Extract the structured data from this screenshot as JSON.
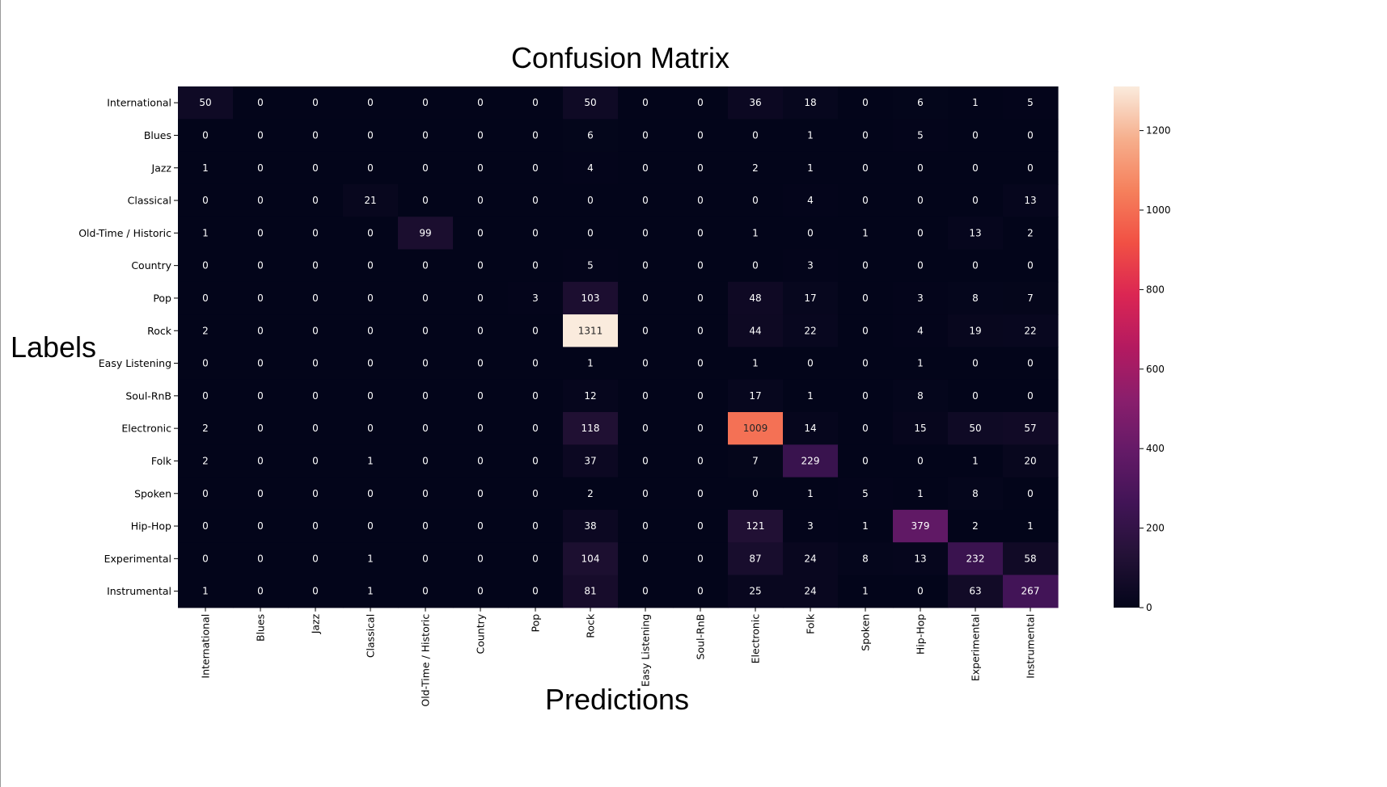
{
  "chart_data": {
    "type": "heatmap",
    "title": "Confusion Matrix",
    "xlabel": "Predictions",
    "ylabel": "Labels",
    "x_categories": [
      "International",
      "Blues",
      "Jazz",
      "Classical",
      "Old-Time / Historic",
      "Country",
      "Pop",
      "Rock",
      "Easy Listening",
      "Soul-RnB",
      "Electronic",
      "Folk",
      "Spoken",
      "Hip-Hop",
      "Experimental",
      "Instrumental"
    ],
    "y_categories": [
      "International",
      "Blues",
      "Jazz",
      "Classical",
      "Old-Time / Historic",
      "Country",
      "Pop",
      "Rock",
      "Easy Listening",
      "Soul-RnB",
      "Electronic",
      "Folk",
      "Spoken",
      "Hip-Hop",
      "Experimental",
      "Instrumental"
    ],
    "values": [
      [
        50,
        0,
        0,
        0,
        0,
        0,
        0,
        50,
        0,
        0,
        36,
        18,
        0,
        6,
        1,
        5
      ],
      [
        0,
        0,
        0,
        0,
        0,
        0,
        0,
        6,
        0,
        0,
        0,
        1,
        0,
        5,
        0,
        0
      ],
      [
        1,
        0,
        0,
        0,
        0,
        0,
        0,
        4,
        0,
        0,
        2,
        1,
        0,
        0,
        0,
        0
      ],
      [
        0,
        0,
        0,
        21,
        0,
        0,
        0,
        0,
        0,
        0,
        0,
        4,
        0,
        0,
        0,
        13
      ],
      [
        1,
        0,
        0,
        0,
        99,
        0,
        0,
        0,
        0,
        0,
        1,
        0,
        1,
        0,
        13,
        2
      ],
      [
        0,
        0,
        0,
        0,
        0,
        0,
        0,
        5,
        0,
        0,
        0,
        3,
        0,
        0,
        0,
        0
      ],
      [
        0,
        0,
        0,
        0,
        0,
        0,
        3,
        103,
        0,
        0,
        48,
        17,
        0,
        3,
        8,
        7
      ],
      [
        2,
        0,
        0,
        0,
        0,
        0,
        0,
        1311,
        0,
        0,
        44,
        22,
        0,
        4,
        19,
        22
      ],
      [
        0,
        0,
        0,
        0,
        0,
        0,
        0,
        1,
        0,
        0,
        1,
        0,
        0,
        1,
        0,
        0
      ],
      [
        0,
        0,
        0,
        0,
        0,
        0,
        0,
        12,
        0,
        0,
        17,
        1,
        0,
        8,
        0,
        0
      ],
      [
        2,
        0,
        0,
        0,
        0,
        0,
        0,
        118,
        0,
        0,
        1009,
        14,
        0,
        15,
        50,
        57
      ],
      [
        2,
        0,
        0,
        1,
        0,
        0,
        0,
        37,
        0,
        0,
        7,
        229,
        0,
        0,
        1,
        20
      ],
      [
        0,
        0,
        0,
        0,
        0,
        0,
        0,
        2,
        0,
        0,
        0,
        1,
        5,
        1,
        8,
        0
      ],
      [
        0,
        0,
        0,
        0,
        0,
        0,
        0,
        38,
        0,
        0,
        121,
        3,
        1,
        379,
        2,
        1
      ],
      [
        0,
        0,
        0,
        1,
        0,
        0,
        0,
        104,
        0,
        0,
        87,
        24,
        8,
        13,
        232,
        58
      ],
      [
        1,
        0,
        0,
        1,
        0,
        0,
        0,
        81,
        0,
        0,
        25,
        24,
        1,
        0,
        63,
        267
      ]
    ],
    "colormap": "rocket",
    "colorbar": {
      "range": [
        0,
        1311
      ],
      "ticks": [
        0,
        200,
        400,
        600,
        800,
        1000,
        1200
      ]
    },
    "grid": false
  }
}
